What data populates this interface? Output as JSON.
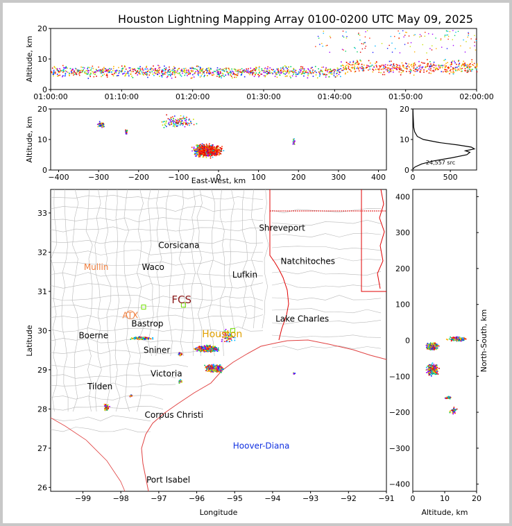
{
  "title": "Houston Lightning Mapping Array 0100-0200 UTC May 09, 2025",
  "colors": {
    "frame": "#c8c8c8",
    "state_border": "#e00000",
    "county": "#b8b8b8",
    "coast": "#e04040"
  },
  "chart_data": [
    {
      "type": "scatter",
      "panel": "altitude-vs-time",
      "ylabel": "Altitude, km",
      "xlim": [
        "01:00:00",
        "02:00:00"
      ],
      "ylim": [
        0,
        20
      ],
      "xticks": [
        "01:00:00",
        "01:10:00",
        "01:20:00",
        "01:30:00",
        "01:40:00",
        "01:50:00",
        "02:00:00"
      ],
      "yticks": [
        "0",
        "10",
        "20"
      ],
      "colormap": "time-rainbow (blue → green → yellow → red for source density)"
    },
    {
      "type": "scatter",
      "panel": "altitude-vs-east-west",
      "xlabel": "East-West, km",
      "ylabel": "Altitude, km",
      "xlim": [
        -420,
        420
      ],
      "ylim": [
        0,
        20
      ],
      "xticks": [
        "−400",
        "−300",
        "−200",
        "−100",
        "0",
        "100",
        "200",
        "300",
        "400"
      ],
      "yticks": [
        "0",
        "10",
        "20"
      ]
    },
    {
      "type": "line",
      "panel": "altitude-histogram",
      "xlim": [
        0,
        850
      ],
      "ylim": [
        0,
        20
      ],
      "xticks": [
        "0",
        "500"
      ],
      "yticks": [
        "0",
        "10",
        "20"
      ],
      "annotation": "24,557 src",
      "profile": [
        {
          "count": 0,
          "alt": 0.3
        },
        {
          "count": 30,
          "alt": 1.0
        },
        {
          "count": 120,
          "alt": 2.0
        },
        {
          "count": 280,
          "alt": 3.0
        },
        {
          "count": 520,
          "alt": 4.0
        },
        {
          "count": 720,
          "alt": 5.0
        },
        {
          "count": 760,
          "alt": 5.8
        },
        {
          "count": 700,
          "alt": 6.3
        },
        {
          "count": 820,
          "alt": 6.9
        },
        {
          "count": 780,
          "alt": 7.5
        },
        {
          "count": 600,
          "alt": 8.2
        },
        {
          "count": 350,
          "alt": 9.0
        },
        {
          "count": 140,
          "alt": 10.0
        },
        {
          "count": 60,
          "alt": 11.0
        },
        {
          "count": 25,
          "alt": 12.5
        },
        {
          "count": 12,
          "alt": 14.0
        },
        {
          "count": 8,
          "alt": 16.0
        },
        {
          "count": 5,
          "alt": 18.0
        },
        {
          "count": 2,
          "alt": 20.0
        }
      ]
    },
    {
      "type": "scatter",
      "panel": "plan-view-map",
      "xlabel": "Longitude",
      "ylabel": "Latitude",
      "xlim": [
        -99.85,
        -91
      ],
      "ylim": [
        25.9,
        33.6
      ],
      "xticks": [
        "−99",
        "−98",
        "−97",
        "−96",
        "−95",
        "−94",
        "−93",
        "−92",
        "−91"
      ],
      "yticks": [
        "26",
        "27",
        "28",
        "29",
        "30",
        "31",
        "32",
        "33"
      ]
    },
    {
      "type": "scatter",
      "panel": "north-south-vs-altitude",
      "xlabel": "Altitude, km",
      "ylabel": "North-South, km",
      "xlim": [
        0,
        20
      ],
      "ylim": [
        -420,
        420
      ],
      "xticks": [
        "0",
        "10",
        "20"
      ],
      "yticks": [
        "−400",
        "−300",
        "−200",
        "−100",
        "0",
        "100",
        "200",
        "300",
        "400"
      ]
    }
  ],
  "map_labels": [
    {
      "text": "Shreveport",
      "lon": -93.75,
      "lat": 32.55,
      "color": "#000000"
    },
    {
      "text": "Corsicana",
      "lon": -96.47,
      "lat": 32.1,
      "color": "#000000"
    },
    {
      "text": "Mullin",
      "lon": -98.65,
      "lat": 31.55,
      "color": "#f08040"
    },
    {
      "text": "Waco",
      "lon": -97.15,
      "lat": 31.55,
      "color": "#000000"
    },
    {
      "text": "Natchitoches",
      "lon": -93.07,
      "lat": 31.7,
      "color": "#000000"
    },
    {
      "text": "Lufkin",
      "lon": -94.73,
      "lat": 31.35,
      "color": "#000000"
    },
    {
      "text": "FCS",
      "lon": -96.4,
      "lat": 30.7,
      "color": "#8b1a1a"
    },
    {
      "text": "ATX",
      "lon": -97.75,
      "lat": 30.32,
      "color": "#f08040"
    },
    {
      "text": "Bastrop",
      "lon": -97.3,
      "lat": 30.1,
      "color": "#000000"
    },
    {
      "text": "Lake Charles",
      "lon": -93.22,
      "lat": 30.23,
      "color": "#000000"
    },
    {
      "text": "Boerne",
      "lon": -98.72,
      "lat": 29.8,
      "color": "#000000"
    },
    {
      "text": "Houston",
      "lon": -95.33,
      "lat": 29.83,
      "color": "#e0a000"
    },
    {
      "text": "Sniner",
      "lon": -97.05,
      "lat": 29.43,
      "color": "#000000"
    },
    {
      "text": "Victoria",
      "lon": -96.8,
      "lat": 28.83,
      "color": "#000000"
    },
    {
      "text": "Tilden",
      "lon": -98.55,
      "lat": 28.5,
      "color": "#000000"
    },
    {
      "text": "Corpus Christi",
      "lon": -96.6,
      "lat": 27.78,
      "color": "#000000"
    },
    {
      "text": "Hoover-Diana",
      "lon": -94.3,
      "lat": 26.99,
      "color": "#1030e0"
    },
    {
      "text": "Port Isabel",
      "lon": -96.75,
      "lat": 26.12,
      "color": "#000000"
    }
  ]
}
